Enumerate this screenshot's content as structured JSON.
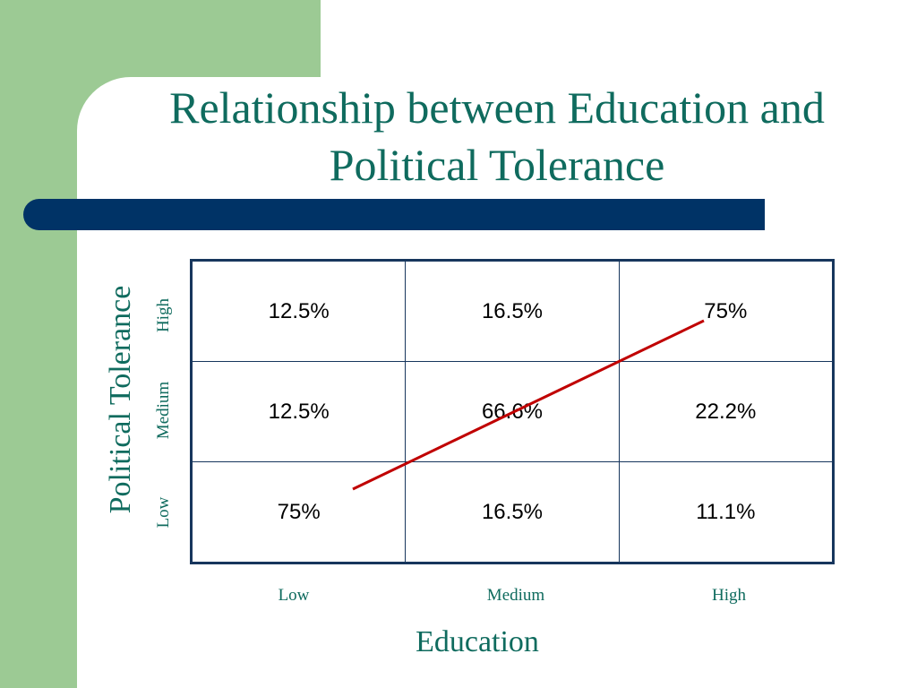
{
  "slide": {
    "title_line1": "Relationship between Education and",
    "title_line2": "Political Tolerance"
  },
  "colors": {
    "accent_green": "#9cca94",
    "title_teal": "#0f6b5e",
    "bar_navy": "#003366",
    "trend_red": "#c00000"
  },
  "table": {
    "y_axis_title": "Political Tolerance",
    "x_axis_title": "Education",
    "row_labels": [
      "High",
      "Medium",
      "Low"
    ],
    "col_labels": [
      "Low",
      "Medium",
      "High"
    ],
    "rows": [
      [
        "12.5%",
        "16.5%",
        "75%"
      ],
      [
        "12.5%",
        "66.6%",
        "22.2%"
      ],
      [
        "75%",
        "16.5%",
        "11.1%"
      ]
    ]
  }
}
